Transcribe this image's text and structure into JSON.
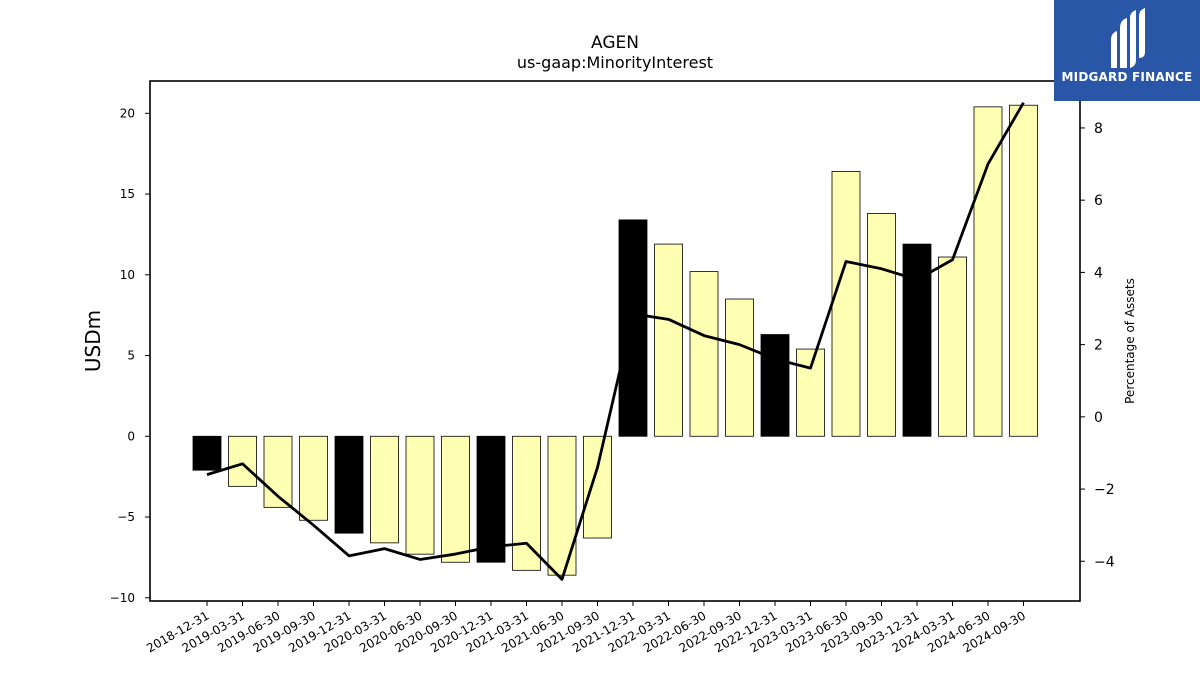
{
  "chart_data": {
    "type": "bar",
    "title": "AGEN",
    "subtitle": "us-gaap:MinorityInterest",
    "ylabel": "USDm",
    "y2label": "Percentage of Assets",
    "ylim": [
      -10.2,
      22
    ],
    "y2lim": [
      -5.1,
      9.3
    ],
    "yticks": [
      -10,
      -5,
      0,
      5,
      10,
      15,
      20
    ],
    "y2ticks": [
      -4,
      -2,
      0,
      2,
      4,
      6,
      8
    ],
    "categories": [
      "2018-12-31",
      "2019-03-31",
      "2019-06-30",
      "2019-09-30",
      "2019-12-31",
      "2020-03-31",
      "2020-06-30",
      "2020-09-30",
      "2020-12-31",
      "2021-03-31",
      "2021-06-30",
      "2021-09-30",
      "2021-12-31",
      "2022-03-31",
      "2022-06-30",
      "2022-09-30",
      "2022-12-31",
      "2023-03-31",
      "2023-06-30",
      "2023-09-30",
      "2023-12-31",
      "2024-03-31",
      "2024-06-30",
      "2024-09-30"
    ],
    "series": [
      {
        "type": "bar",
        "values": [
          -2.1,
          -3.1,
          -4.4,
          -5.2,
          -6.0,
          -6.6,
          -7.3,
          -7.8,
          -7.8,
          -8.3,
          -8.6,
          -6.3,
          13.4,
          11.9,
          10.2,
          8.5,
          6.3,
          5.4,
          16.4,
          13.8,
          11.9,
          11.1,
          20.4,
          20.5
        ],
        "colors": [
          "#000000",
          "#ffffb3",
          "#ffffb3",
          "#ffffb3",
          "#000000",
          "#ffffb3",
          "#ffffb3",
          "#ffffb3",
          "#000000",
          "#ffffb3",
          "#ffffb3",
          "#ffffb3",
          "#000000",
          "#ffffb3",
          "#ffffb3",
          "#ffffb3",
          "#000000",
          "#ffffb3",
          "#ffffb3",
          "#ffffb3",
          "#000000",
          "#ffffb3",
          "#ffffb3",
          "#ffffb3"
        ]
      },
      {
        "type": "line",
        "axis": "right",
        "color": "#000000",
        "values": [
          -1.6,
          -1.3,
          -2.2,
          -3.0,
          -3.85,
          -3.65,
          -3.95,
          -3.8,
          -3.6,
          -3.5,
          -4.5,
          -1.4,
          2.85,
          2.7,
          2.25,
          2.0,
          1.6,
          1.35,
          4.3,
          4.1,
          3.8,
          4.35,
          7.0,
          8.7
        ]
      }
    ],
    "grid": false,
    "colors": {
      "bar_fill": "#ffffb3",
      "bar_highlight": "#000000",
      "line": "#000000"
    }
  },
  "logo": {
    "text": "MIDGARD FINANCE",
    "background": "#2a56a8"
  }
}
